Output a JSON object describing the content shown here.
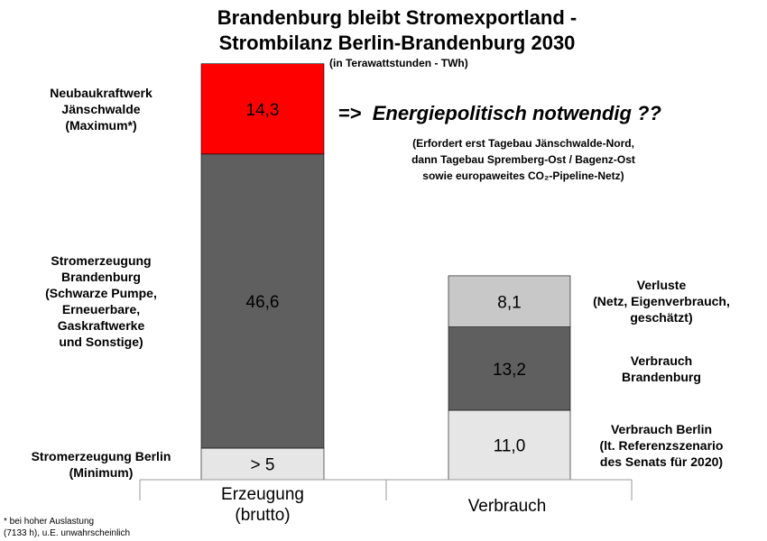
{
  "chart_data": {
    "type": "bar",
    "stacked": true,
    "title": "Brandenburg bleibt Stromexportland -",
    "title_line2": "Strombilanz Berlin-Brandenburg 2030",
    "subtitle": "(in Terawattstunden - TWh)",
    "categories": [
      "Erzeugung\n(brutto)",
      "Verbrauch"
    ],
    "category_labels": [
      [
        "Erzeugung",
        "(brutto)"
      ],
      [
        "Verbrauch"
      ]
    ],
    "ylabel": "TWh",
    "stacks": [
      {
        "category": "Erzeugung (brutto)",
        "segments": [
          {
            "name": "Stromerzeugung Berlin (Minimum)",
            "label_lines": [
              "Stromerzeugung Berlin",
              "(Minimum)"
            ],
            "value": 5,
            "value_label": "> 5",
            "color": "#e6e6e6"
          },
          {
            "name": "Stromerzeugung Brandenburg",
            "label_lines": [
              "Stromerzeugung",
              "Brandenburg",
              "(Schwarze Pumpe,",
              "Erneuerbare,",
              "Gaskraftwerke",
              "und Sonstige)"
            ],
            "value": 46.6,
            "value_label": "46,6",
            "color": "#5f5f5f"
          },
          {
            "name": "Neubaukraftwerk Jänschwalde (Maximum*)",
            "label_lines": [
              "Neubaukraftwerk",
              "Jänschwalde",
              "(Maximum*)"
            ],
            "value": 14.3,
            "value_label": "14,3",
            "color": "#ff0000"
          }
        ]
      },
      {
        "category": "Verbrauch",
        "segments": [
          {
            "name": "Verbrauch Berlin",
            "label_lines": [
              "Verbrauch Berlin",
              "(lt. Referenzszenario",
              "des Senats für 2020)"
            ],
            "value": 11.0,
            "value_label": "11,0",
            "color": "#e6e6e6"
          },
          {
            "name": "Verbrauch Brandenburg",
            "label_lines": [
              "Verbrauch",
              "Brandenburg"
            ],
            "value": 13.2,
            "value_label": "13,2",
            "color": "#5f5f5f"
          },
          {
            "name": "Verluste",
            "label_lines": [
              "Verluste",
              "(Netz, Eigenverbrauch,",
              "geschätzt)"
            ],
            "value": 8.1,
            "value_label": "8,1",
            "color": "#c8c8c8"
          }
        ]
      }
    ],
    "annotations": {
      "arrow": "=>",
      "headline": "Energiepolitisch notwendig ??",
      "note_lines": [
        "(Erfordert erst Tagebau Jänschwalde-Nord,",
        "dann Tagebau Spremberg-Ost / Bagenz-Ost",
        "sowie europaweites CO₂-Pipeline-Netz)"
      ]
    },
    "footnote_lines": [
      "* bei hoher Auslastung",
      "(7133 h), u.E. unwahrscheinlich"
    ],
    "grid": false,
    "legend": "none"
  }
}
